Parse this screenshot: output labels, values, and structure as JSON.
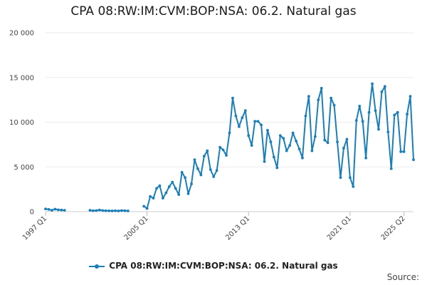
{
  "chart_data": {
    "type": "line",
    "title": "CPA 08:RW:IM:CVM:BOP:NSA: 06.2. Natural gas",
    "xlabel": "",
    "ylabel": "",
    "ylim": [
      0,
      20000
    ],
    "y_ticks": [
      "0",
      "5 000",
      "10 000",
      "15 000",
      "20 000"
    ],
    "y_tick_values": [
      0,
      5000,
      10000,
      15000,
      20000
    ],
    "x_ticks": [
      "1997 Q1",
      "2005 Q1",
      "2013 Q1",
      "2021 Q1",
      "2025 Q2"
    ],
    "x_tick_positions": [
      0,
      32,
      64,
      96,
      113
    ],
    "grid": true,
    "legend_position": "bottom",
    "series": [
      {
        "name": "CPA 08:RW:IM:CVM:BOP:NSA: 06.2. Natural gas",
        "color": "#1a7fb8",
        "values": [
          300,
          250,
          150,
          280,
          200,
          180,
          150,
          null,
          null,
          null,
          null,
          null,
          null,
          null,
          150,
          100,
          120,
          180,
          120,
          100,
          90,
          80,
          100,
          80,
          120,
          100,
          80,
          null,
          null,
          null,
          null,
          600,
          350,
          1700,
          1500,
          2600,
          2900,
          1500,
          2100,
          2800,
          3300,
          2600,
          1900,
          4400,
          3800,
          2000,
          3100,
          5800,
          4800,
          4100,
          6200,
          6800,
          4700,
          3900,
          4600,
          7200,
          6900,
          6300,
          8800,
          12700,
          10700,
          9500,
          10500,
          11300,
          8500,
          7400,
          10100,
          10100,
          9700,
          5600,
          9100,
          7800,
          6100,
          4900,
          8500,
          8200,
          6800,
          7400,
          8800,
          7900,
          7000,
          6000,
          10700,
          12900,
          6800,
          8400,
          12500,
          13800,
          8000,
          7700,
          12700,
          11900,
          7800,
          3800,
          7100,
          8100,
          3800,
          2800,
          10200,
          11800,
          10100,
          6000,
          11100,
          14300,
          11300,
          9200,
          13400,
          14000,
          8900,
          4800,
          10800,
          11100,
          6700,
          6700,
          10900,
          12900,
          5800
        ]
      }
    ]
  },
  "legend": {
    "label": "CPA 08:RW:IM:CVM:BOP:NSA: 06.2. Natural gas"
  },
  "footer": {
    "source": "Source:"
  }
}
